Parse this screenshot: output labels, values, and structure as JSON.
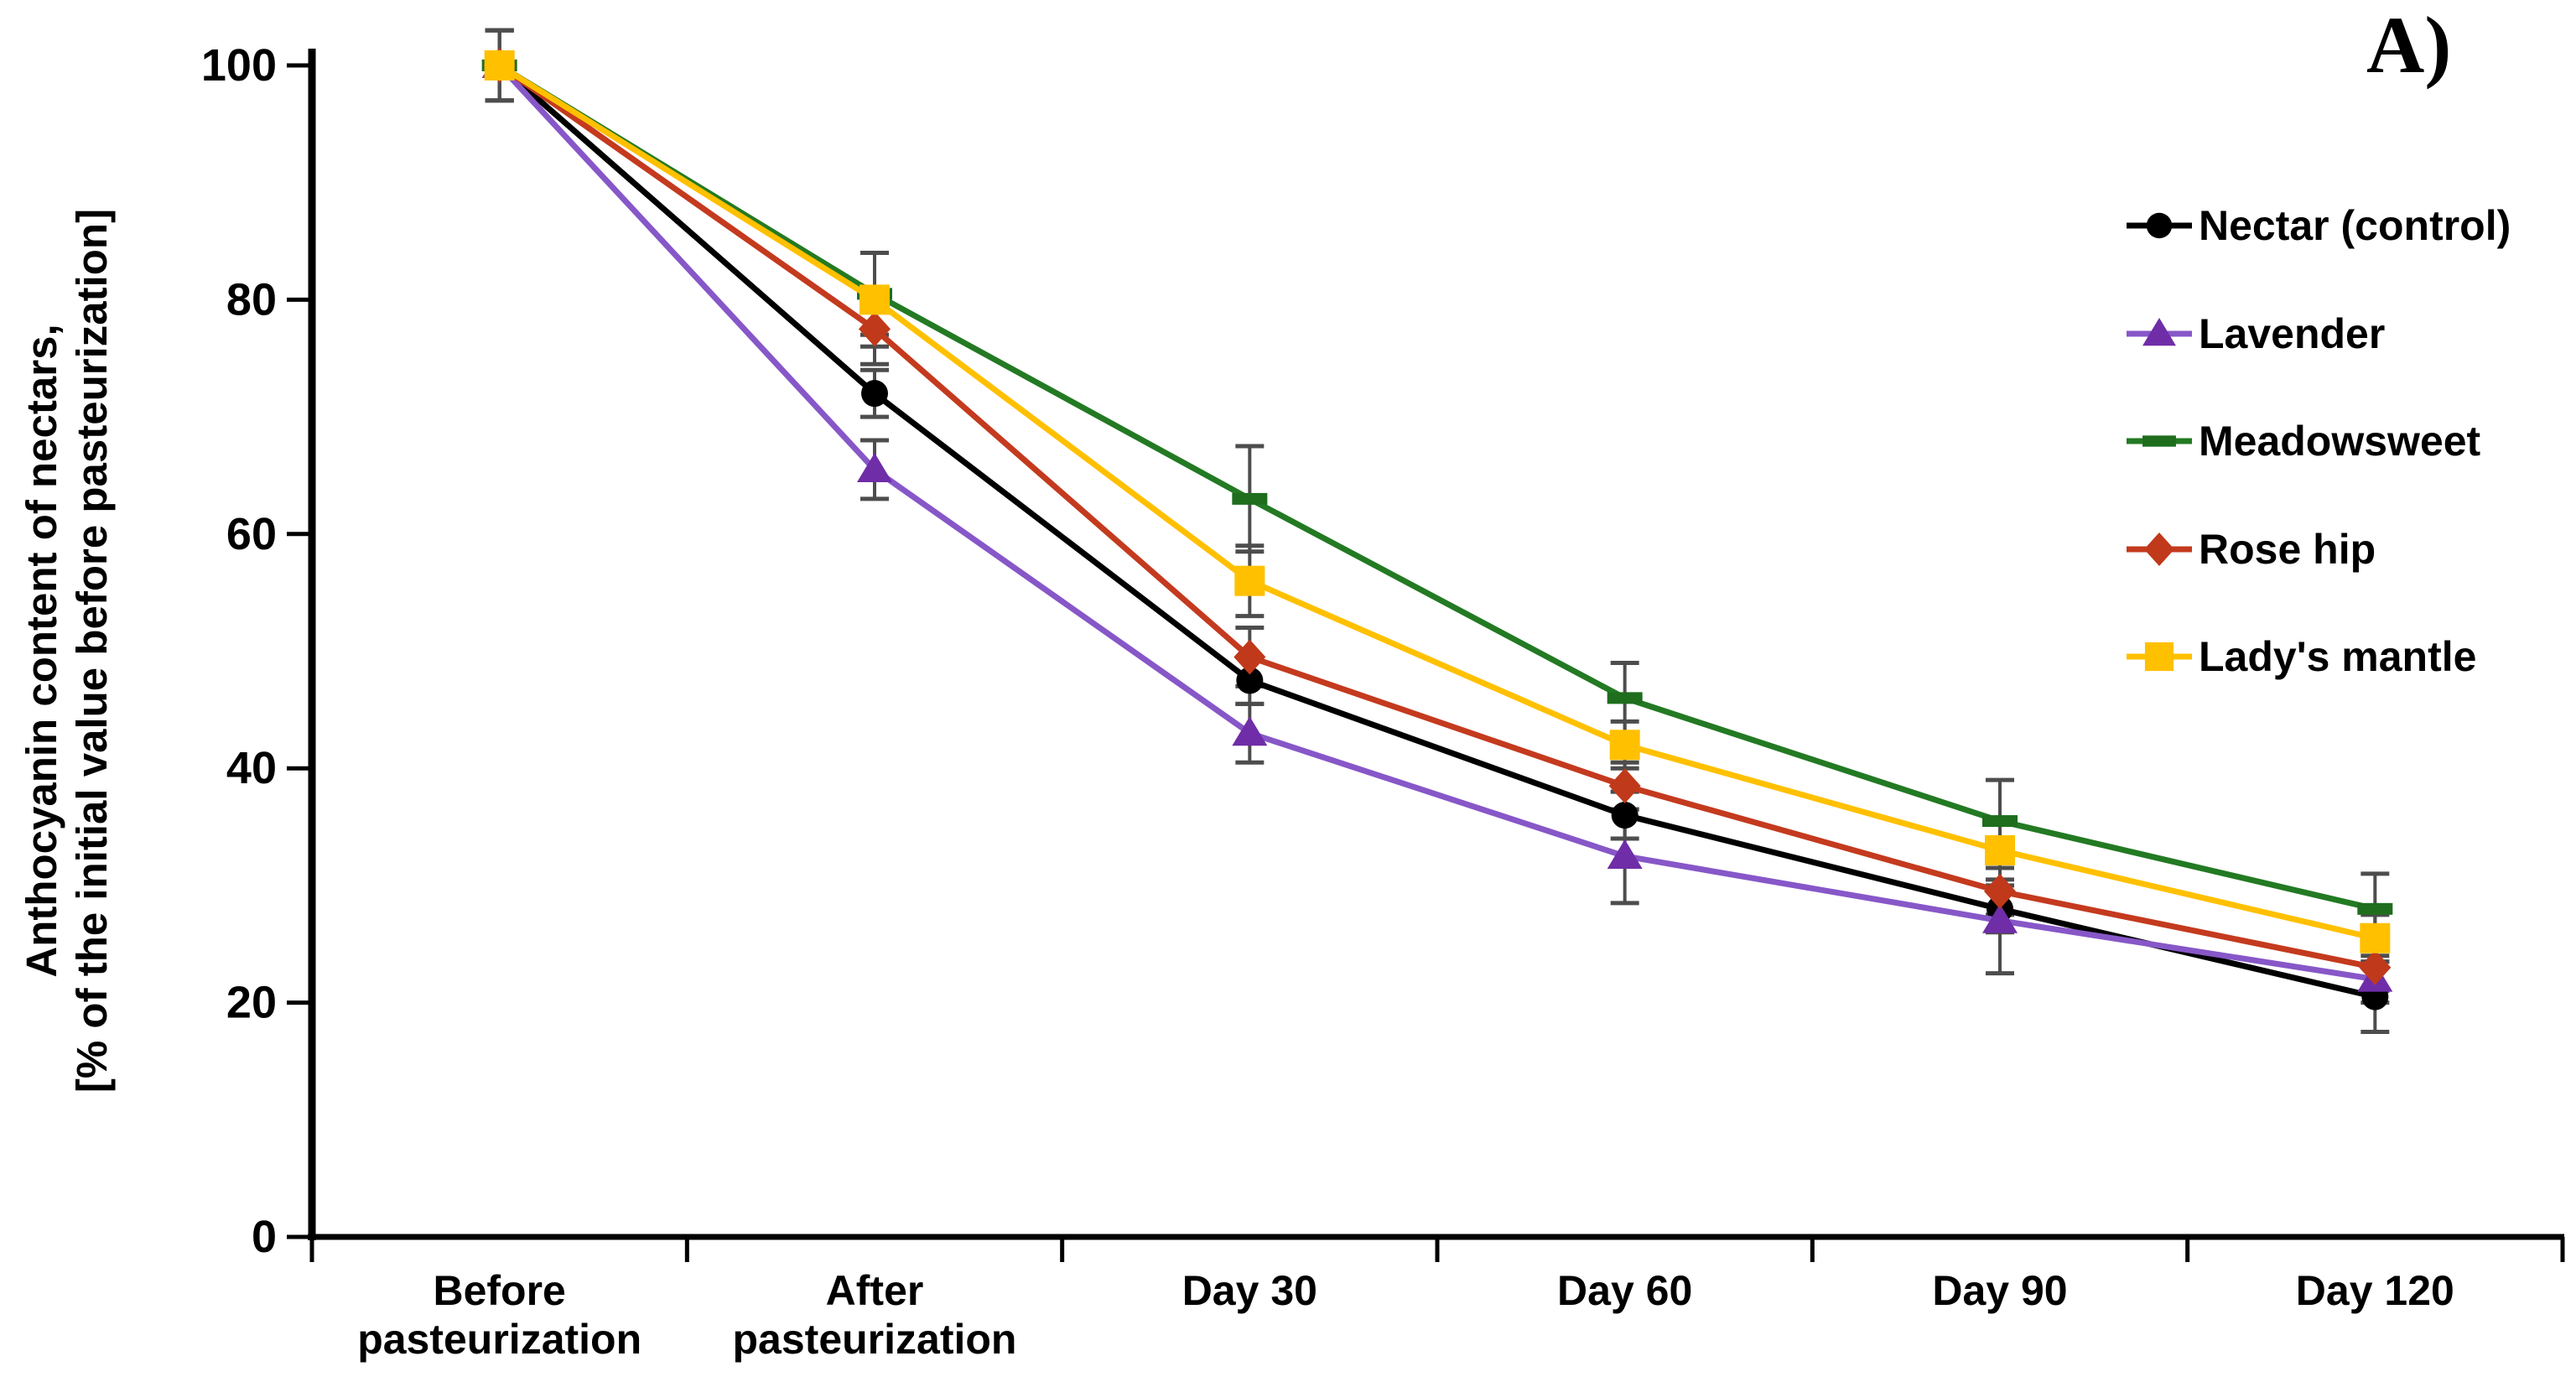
{
  "figure_label": "A)",
  "chart_data": {
    "type": "line",
    "title": "",
    "xlabel": "",
    "ylabel": "Anthocyanin content of nectars, [% of the initial value before pasteurization]",
    "ylabel_lines": [
      "Anthocyanin content of nectars,",
      "[% of the initial value before pasteurization]"
    ],
    "categories": [
      "Before pasteurization",
      "After pasteurization",
      "Day 30",
      "Day 60",
      "Day 90",
      "Day 120"
    ],
    "category_label_lines": [
      [
        "Before",
        "pasteurization"
      ],
      [
        "After",
        "pasteurization"
      ],
      [
        "Day 30"
      ],
      [
        "Day 60"
      ],
      [
        "Day 90"
      ],
      [
        "Day 120"
      ]
    ],
    "ylim": [
      0,
      100
    ],
    "yticks": [
      0,
      20,
      40,
      60,
      80,
      100
    ],
    "grid": false,
    "legend_position": "right",
    "error_bars": true,
    "error_bar_color": "#4D4D4D",
    "axis_color": "#000000",
    "series": [
      {
        "name": "Nectar (control)",
        "color": "#000000",
        "marker": "circle",
        "marker_color": "#000000",
        "values": [
          100,
          72,
          47.5,
          36,
          28,
          20.5
        ],
        "errors": [
          3,
          2,
          2,
          2,
          2,
          3
        ]
      },
      {
        "name": "Lavender",
        "color": "#8757C8",
        "marker": "triangle",
        "marker_color": "#6F2DA8",
        "values": [
          100,
          65.5,
          43,
          32.5,
          27,
          22
        ],
        "errors": [
          3,
          2.5,
          2.5,
          4,
          4.5,
          2
        ]
      },
      {
        "name": "Meadowsweet",
        "color": "#237A23",
        "marker": "dash",
        "marker_color": "#1E6E1E",
        "values": [
          100,
          80.5,
          63,
          46,
          35.5,
          28
        ],
        "errors": [
          3,
          3.5,
          4.5,
          3,
          3.5,
          3
        ]
      },
      {
        "name": "Rose hip",
        "color": "#C43A1E",
        "marker": "diamond",
        "marker_color": "#C0391B",
        "values": [
          100,
          77.5,
          49.5,
          38.5,
          29.5,
          23
        ],
        "errors": [
          3,
          3,
          2.5,
          2,
          2,
          2
        ]
      },
      {
        "name": "Lady's mantle",
        "color": "#FFC000",
        "marker": "square",
        "marker_color": "#FFC000",
        "values": [
          100,
          80,
          56,
          42,
          33,
          25.5
        ],
        "errors": [
          3,
          4,
          3,
          2,
          2.5,
          2
        ]
      }
    ]
  }
}
